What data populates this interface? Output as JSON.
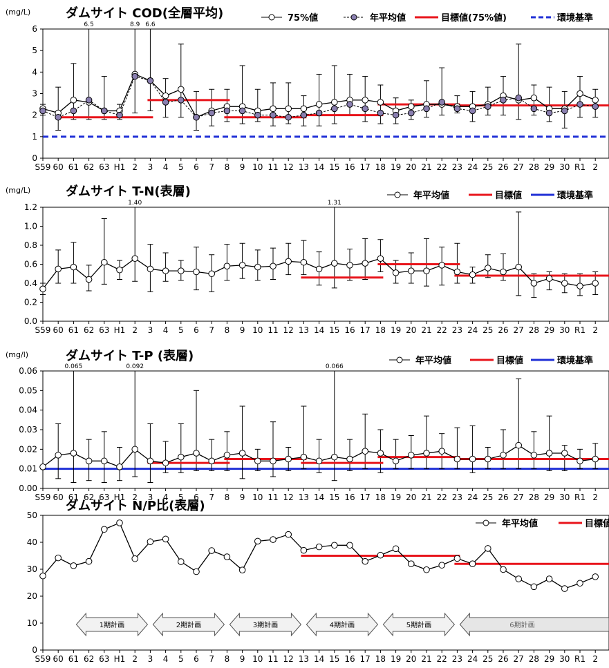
{
  "x_categories": [
    "S59",
    "60",
    "61",
    "62",
    "63",
    "H1",
    "2",
    "3",
    "4",
    "5",
    "6",
    "7",
    "8",
    "9",
    "10",
    "11",
    "12",
    "13",
    "14",
    "15",
    "16",
    "17",
    "18",
    "19",
    "20",
    "21",
    "22",
    "23",
    "24",
    "25",
    "26",
    "27",
    "28",
    "29",
    "30",
    "R1",
    "2"
  ],
  "colors": {
    "target": "#e8141b",
    "standard_cod": "#1f2fd6",
    "standard_solid": "#1f2fd6",
    "avg_marker": "#8a7fb0",
    "line": "#000000"
  },
  "chart_data": [
    {
      "type": "line",
      "title": "ダムサイト COD(全層平均)",
      "unit": "(mg/L)",
      "ylim": [
        0,
        6
      ],
      "yticks": [
        "0",
        "1",
        "2",
        "3",
        "4",
        "5",
        "6"
      ],
      "legend": [
        "75%値",
        "年平均値",
        "目標値(75%値)",
        "環境基準"
      ],
      "series": [
        {
          "name": "75%値",
          "values": [
            2.3,
            2.1,
            2.7,
            2.6,
            2.2,
            2.2,
            3.9,
            3.6,
            2.9,
            3.2,
            1.9,
            2.2,
            2.4,
            2.4,
            2.2,
            2.3,
            2.3,
            2.3,
            2.5,
            2.6,
            2.7,
            2.7,
            2.6,
            2.2,
            2.4,
            2.5,
            2.5,
            2.4,
            2.4,
            2.5,
            2.9,
            2.7,
            2.8,
            2.3,
            2.3,
            3.0,
            2.7
          ]
        },
        {
          "name": "年平均値",
          "values": [
            2.2,
            1.9,
            2.2,
            2.7,
            2.2,
            2.0,
            3.8,
            3.6,
            2.6,
            2.7,
            1.9,
            2.1,
            2.2,
            2.2,
            2.0,
            2.0,
            1.9,
            2.0,
            2.1,
            2.3,
            2.5,
            2.3,
            2.1,
            2.0,
            2.1,
            2.3,
            2.6,
            2.3,
            2.2,
            2.4,
            2.7,
            2.8,
            2.3,
            2.1,
            2.2,
            2.5,
            2.4
          ]
        }
      ],
      "errorbars": {
        "low": [
          2.0,
          1.3,
          1.8,
          1.8,
          1.8,
          1.8,
          2.1,
          2.2,
          1.9,
          1.9,
          1.3,
          1.5,
          1.7,
          1.6,
          1.7,
          1.5,
          1.6,
          1.5,
          1.5,
          1.6,
          2.0,
          1.7,
          1.6,
          1.6,
          1.8,
          1.9,
          2.0,
          2.1,
          1.7,
          2.0,
          2.0,
          1.8,
          2.0,
          1.7,
          1.4,
          1.9,
          1.9
        ],
        "high": [
          2.5,
          3.3,
          4.4,
          6.5,
          3.8,
          2.5,
          8.9,
          6.6,
          3.7,
          5.3,
          3.1,
          3.2,
          3.2,
          4.3,
          3.2,
          3.5,
          3.5,
          2.9,
          3.9,
          4.3,
          3.9,
          3.8,
          3.4,
          2.8,
          2.7,
          3.6,
          4.2,
          2.9,
          3.1,
          3.3,
          3.8,
          5.3,
          3.4,
          3.3,
          3.1,
          3.8,
          3.2
        ]
      },
      "clip_labels": [
        {
          "i": 3,
          "text": "6.5"
        },
        {
          "i": 6,
          "text": "8.9"
        },
        {
          "i": 7,
          "text": "6.6"
        }
      ],
      "targets": [
        {
          "from": 0,
          "to": 7,
          "value": 1.9
        },
        {
          "from": 7,
          "to": 12,
          "value": 2.7
        },
        {
          "from": 12,
          "to": 17,
          "value": 1.9
        },
        {
          "from": 17,
          "to": 22,
          "value": 2.0
        },
        {
          "from": 22,
          "to": 27,
          "value": 2.5
        },
        {
          "from": 27,
          "to": 36,
          "value": 2.45
        }
      ],
      "standard": {
        "value": 1.0,
        "dashed": true
      }
    },
    {
      "type": "line",
      "title": "ダムサイト T-N(表層)",
      "unit": "(mg/L)",
      "ylim": [
        0,
        1.2
      ],
      "yticks": [
        "0.0",
        "0.2",
        "0.4",
        "0.6",
        "0.8",
        "1.0",
        "1.2"
      ],
      "legend": [
        "年平均値",
        "目標値",
        "環境基準"
      ],
      "series": [
        {
          "name": "年平均値",
          "values": [
            0.34,
            0.55,
            0.57,
            0.44,
            0.62,
            0.54,
            0.66,
            0.55,
            0.53,
            0.53,
            0.52,
            0.5,
            0.58,
            0.59,
            0.57,
            0.58,
            0.63,
            0.62,
            0.55,
            0.61,
            0.59,
            0.61,
            0.66,
            0.51,
            0.53,
            0.53,
            0.59,
            0.52,
            0.49,
            0.56,
            0.52,
            0.57,
            0.4,
            0.45,
            0.4,
            0.37,
            0.4
          ]
        }
      ],
      "errorbars": {
        "low": [
          0.28,
          0.4,
          0.4,
          0.32,
          0.39,
          0.44,
          0.42,
          0.31,
          0.42,
          0.43,
          0.33,
          0.31,
          0.43,
          0.45,
          0.43,
          0.44,
          0.49,
          0.49,
          0.38,
          0.35,
          0.43,
          0.44,
          0.52,
          0.4,
          0.4,
          0.37,
          0.38,
          0.4,
          0.4,
          0.46,
          0.43,
          0.27,
          0.25,
          0.33,
          0.3,
          0.27,
          0.28
        ],
        "high": [
          0.4,
          0.75,
          0.83,
          0.59,
          1.08,
          0.64,
          1.4,
          0.81,
          0.72,
          0.64,
          0.78,
          0.7,
          0.81,
          0.82,
          0.75,
          0.77,
          0.82,
          0.85,
          0.73,
          1.31,
          0.76,
          0.87,
          0.86,
          0.64,
          0.72,
          0.87,
          0.78,
          0.82,
          0.57,
          0.7,
          0.71,
          1.15,
          0.5,
          0.52,
          0.5,
          0.5,
          0.52
        ]
      },
      "clip_labels": [
        {
          "i": 6,
          "text": "1.40"
        },
        {
          "i": 19,
          "text": "1.31"
        }
      ],
      "targets": [
        {
          "from": 17,
          "to": 22,
          "value": 0.46
        },
        {
          "from": 22,
          "to": 27,
          "value": 0.6
        },
        {
          "from": 27,
          "to": 36,
          "value": 0.48
        }
      ],
      "standard": {
        "value": null,
        "dashed": false
      }
    },
    {
      "type": "line",
      "title": "ダムサイト T-P (表層)",
      "unit": "(mg/l)",
      "ylim": [
        0,
        0.06
      ],
      "yticks": [
        "0.00",
        "0.01",
        "0.02",
        "0.03",
        "0.04",
        "0.05",
        "0.06"
      ],
      "legend": [
        "年平均値",
        "目標値",
        "環境基準"
      ],
      "series": [
        {
          "name": "年平均値",
          "values": [
            0.011,
            0.017,
            0.018,
            0.014,
            0.014,
            0.011,
            0.02,
            0.014,
            0.013,
            0.016,
            0.018,
            0.014,
            0.017,
            0.018,
            0.014,
            0.014,
            0.015,
            0.016,
            0.014,
            0.016,
            0.015,
            0.019,
            0.018,
            0.014,
            0.017,
            0.018,
            0.019,
            0.015,
            0.015,
            0.015,
            0.017,
            0.022,
            0.017,
            0.018,
            0.018,
            0.014,
            0.015
          ]
        }
      ],
      "errorbars": {
        "low": [
          0.01,
          0.005,
          0.003,
          0.004,
          0.003,
          0.004,
          0.006,
          0.003,
          0.008,
          0.008,
          0.009,
          0.009,
          0.009,
          0.005,
          0.009,
          0.006,
          0.009,
          0.01,
          0.008,
          0.004,
          0.009,
          0.01,
          0.008,
          0.01,
          0.01,
          0.01,
          0.01,
          0.01,
          0.008,
          0.01,
          0.01,
          0.01,
          0.01,
          0.009,
          0.009,
          0.01,
          0.01
        ],
        "high": [
          0.011,
          0.033,
          0.065,
          0.025,
          0.029,
          0.021,
          0.092,
          0.033,
          0.024,
          0.033,
          0.05,
          0.025,
          0.029,
          0.042,
          0.02,
          0.034,
          0.021,
          0.042,
          0.025,
          0.066,
          0.025,
          0.038,
          0.03,
          0.025,
          0.027,
          0.037,
          0.028,
          0.031,
          0.032,
          0.021,
          0.03,
          0.056,
          0.029,
          0.037,
          0.022,
          0.02,
          0.023
        ]
      },
      "clip_labels": [
        {
          "i": 2,
          "text": "0.065"
        },
        {
          "i": 6,
          "text": "0.092"
        },
        {
          "i": 19,
          "text": "0.066"
        }
      ],
      "targets": [
        {
          "from": 7,
          "to": 12,
          "value": 0.013
        },
        {
          "from": 12,
          "to": 17,
          "value": 0.015
        },
        {
          "from": 17,
          "to": 22,
          "value": 0.013
        },
        {
          "from": 22,
          "to": 27,
          "value": 0.016
        },
        {
          "from": 27,
          "to": 36,
          "value": 0.015
        }
      ],
      "standard": {
        "value": 0.01,
        "dashed": false
      }
    },
    {
      "type": "line",
      "title": "ダムサイト N/P比(表層)",
      "unit": "",
      "ylim": [
        0,
        50
      ],
      "yticks": [
        "0",
        "10",
        "20",
        "30",
        "40",
        "50"
      ],
      "legend": [
        "年平均値",
        "目標値"
      ],
      "series": [
        {
          "name": "年平均値",
          "values": [
            27.5,
            34.2,
            31.3,
            32.9,
            44.8,
            47.2,
            33.9,
            40.2,
            41.2,
            32.8,
            29.1,
            36.9,
            34.6,
            29.7,
            40.4,
            41.0,
            42.9,
            37.0,
            38.3,
            38.9,
            38.9,
            32.9,
            35.2,
            37.6,
            32.0,
            29.8,
            31.5,
            34.0,
            32.0,
            37.7,
            29.9,
            26.4,
            23.5,
            26.4,
            22.8,
            24.8,
            27.2
          ]
        }
      ],
      "targets": [
        {
          "from": 17,
          "to": 27,
          "value": 35.0
        },
        {
          "from": 27,
          "to": 36,
          "value": 32.0
        }
      ],
      "plans": [
        {
          "label": "1期計画",
          "from": 2,
          "to": 7,
          "dir": "both"
        },
        {
          "label": "2期計画",
          "from": 7,
          "to": 12,
          "dir": "both"
        },
        {
          "label": "3期計画",
          "from": 12,
          "to": 17,
          "dir": "both"
        },
        {
          "label": "4期計画",
          "from": 17,
          "to": 22,
          "dir": "both"
        },
        {
          "label": "5期計画",
          "from": 22,
          "to": 27,
          "dir": "both"
        },
        {
          "label": "6期計画",
          "from": 27,
          "to": 36,
          "dir": "left"
        }
      ]
    }
  ]
}
